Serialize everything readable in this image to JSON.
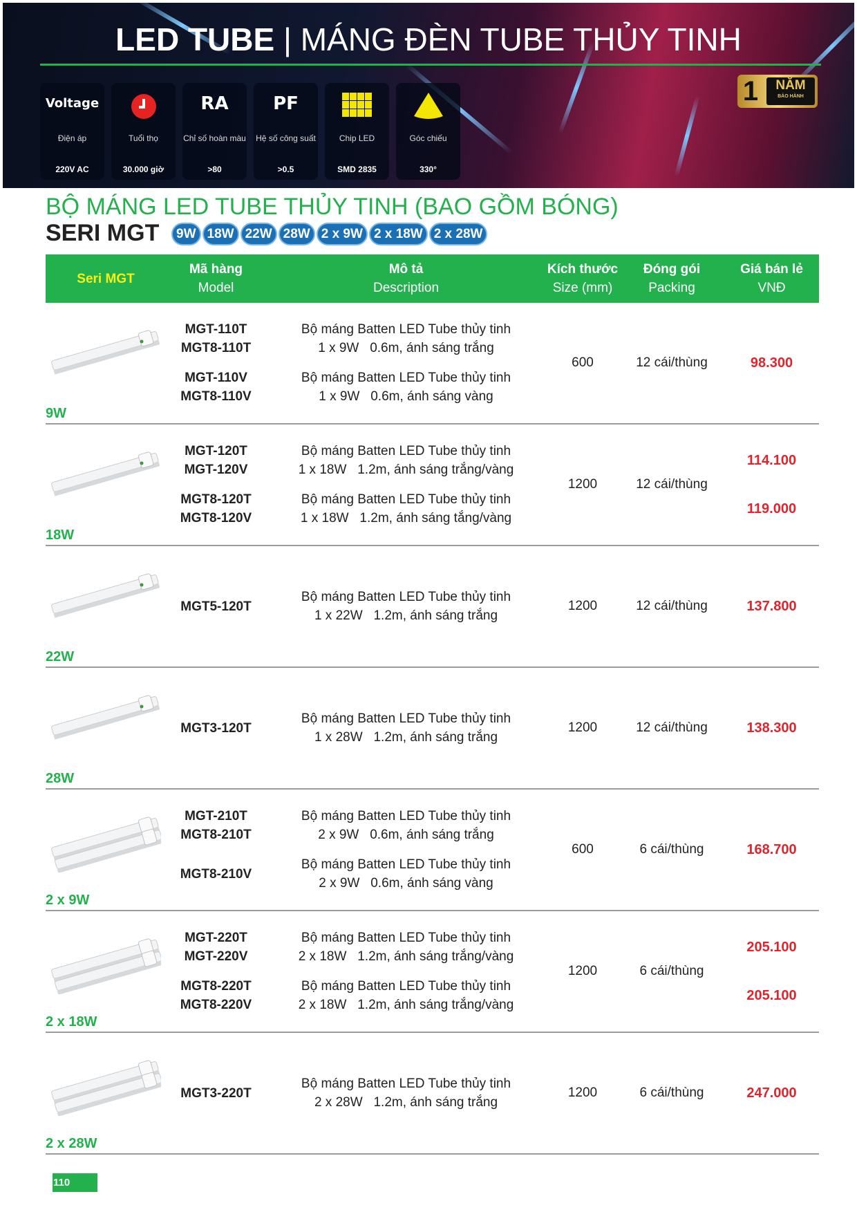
{
  "banner": {
    "title_bold": "LED TUBE",
    "title_sep": "|",
    "title_light": "MÁNG ĐÈN TUBE THỦY TINH",
    "specs": [
      {
        "icon": "voltage-icon",
        "icon_text": "Voltage",
        "label": "Điện áp",
        "value": "220V AC"
      },
      {
        "icon": "clock-icon",
        "icon_text": "",
        "label": "Tuổi thọ",
        "value": "30.000 giờ"
      },
      {
        "icon": "ra-icon",
        "icon_text": "RA",
        "label": "Chỉ số hoàn màu",
        "value": ">80"
      },
      {
        "icon": "pf-icon",
        "icon_text": "PF",
        "label": "Hệ số công suất",
        "value": ">0.5"
      },
      {
        "icon": "chip-led-icon",
        "icon_text": "",
        "label": "Chip LED",
        "value": "SMD 2835"
      },
      {
        "icon": "beam-angle-icon",
        "icon_text": "",
        "label": "Góc chiếu",
        "value": "330°"
      }
    ],
    "warranty": {
      "number": "1",
      "unit": "NĂM",
      "label": "BẢO HÀNH"
    }
  },
  "heading": "BỘ MÁNG LED TUBE THỦY TINH (BAO GỒM BÓNG)",
  "series": "SERI MGT",
  "badges": [
    "9W",
    "18W",
    "22W",
    "28W",
    "2 x 9W",
    "2 x 18W",
    "2 x 28W"
  ],
  "table": {
    "headers": [
      {
        "vi": "Seri MGT",
        "en": ""
      },
      {
        "vi": "Mã hàng",
        "en": "Model"
      },
      {
        "vi": "Mô tả",
        "en": "Description"
      },
      {
        "vi": "Kích thước",
        "en": "Size (mm)"
      },
      {
        "vi": "Đóng gói",
        "en": "Packing"
      },
      {
        "vi": "Giá bán lẻ",
        "en": "VNĐ"
      }
    ],
    "rows": [
      {
        "watt": "9W",
        "tubes": 1,
        "groups": [
          {
            "models": [
              "MGT-110T",
              "MGT8-110T"
            ],
            "desc": [
              "Bộ máng Batten LED Tube thủy tinh",
              "1 x 9W   0.6m, ánh sáng trắng"
            ]
          },
          {
            "models": [
              "MGT-110V",
              "MGT8-110V"
            ],
            "desc": [
              "Bộ máng Batten LED Tube thủy tinh",
              "1 x 9W   0.6m, ánh sáng vàng"
            ]
          }
        ],
        "size": "600",
        "packing": "12 cái/thùng",
        "prices": [
          "98.300"
        ]
      },
      {
        "watt": "18W",
        "tubes": 1,
        "groups": [
          {
            "models": [
              "MGT-120T",
              "MGT-120V"
            ],
            "desc": [
              "Bộ máng Batten LED Tube thủy tinh",
              "1 x 18W   1.2m, ánh sáng trắng/vàng"
            ]
          },
          {
            "models": [
              "MGT8-120T",
              "MGT8-120V"
            ],
            "desc": [
              "Bộ máng Batten LED Tube thủy tinh",
              "1 x 18W   1.2m, ánh sáng tắng/vàng"
            ]
          }
        ],
        "size": "1200",
        "packing": "12 cái/thùng",
        "prices": [
          "114.100",
          "119.000"
        ]
      },
      {
        "watt": "22W",
        "tubes": 1,
        "groups": [
          {
            "models": [
              "MGT5-120T"
            ],
            "desc": [
              "Bộ máng Batten LED Tube thủy tinh",
              "1 x 22W   1.2m, ánh sáng trắng"
            ]
          }
        ],
        "size": "1200",
        "packing": "12 cái/thùng",
        "prices": [
          "137.800"
        ]
      },
      {
        "watt": "28W",
        "tubes": 1,
        "groups": [
          {
            "models": [
              "MGT3-120T"
            ],
            "desc": [
              "Bộ máng Batten LED Tube thủy tinh",
              "1 x 28W   1.2m, ánh sáng trắng"
            ]
          }
        ],
        "size": "1200",
        "packing": "12 cái/thùng",
        "prices": [
          "138.300"
        ]
      },
      {
        "watt": "2 x 9W",
        "tubes": 2,
        "groups": [
          {
            "models": [
              "MGT-210T",
              "MGT8-210T"
            ],
            "desc": [
              "Bộ máng Batten LED Tube thủy tinh",
              "2 x 9W   0.6m, ánh sáng trắng"
            ]
          },
          {
            "models": [
              "MGT8-210V"
            ],
            "desc": [
              "Bộ máng Batten LED Tube thủy tinh",
              "2 x 9W   0.6m, ánh sáng vàng"
            ]
          }
        ],
        "size": "600",
        "packing": "6 cái/thùng",
        "prices": [
          "168.700"
        ]
      },
      {
        "watt": "2 x 18W",
        "tubes": 2,
        "groups": [
          {
            "models": [
              "MGT-220T",
              "MGT-220V"
            ],
            "desc": [
              "Bộ máng Batten LED Tube thủy tinh",
              "2 x 18W   1.2m, ánh sáng trắng/vàng"
            ]
          },
          {
            "models": [
              "MGT8-220T",
              "MGT8-220V"
            ],
            "desc": [
              "Bộ máng Batten LED Tube thủy tinh",
              "2 x 18W   1.2m, ánh sáng trắng/vàng"
            ]
          }
        ],
        "size": "1200",
        "packing": "6 cái/thùng",
        "prices": [
          "205.100",
          "205.100"
        ]
      },
      {
        "watt": "2 x 28W",
        "tubes": 2,
        "groups": [
          {
            "models": [
              "MGT3-220T"
            ],
            "desc": [
              "Bộ máng Batten LED Tube thủy tinh",
              "2 x 28W   1.2m, ánh sáng trắng"
            ]
          }
        ],
        "size": "1200",
        "packing": "6 cái/thùng",
        "prices": [
          "247.000"
        ]
      }
    ]
  },
  "colors": {
    "green": "#22b14c",
    "price_red": "#e0242b",
    "badge_blue": "#1a6fb5",
    "header_yellow": "#f6f018"
  },
  "page_number": "110"
}
